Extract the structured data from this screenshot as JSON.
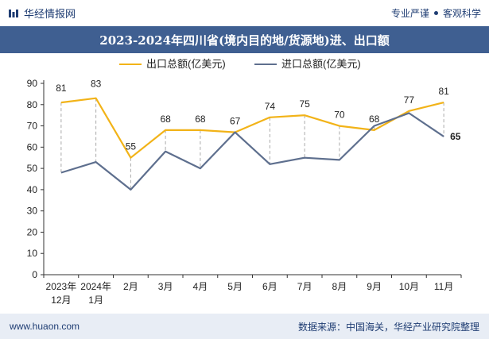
{
  "header": {
    "brand": "华经情报网",
    "tag1": "专业严谨",
    "tag2": "客观科学"
  },
  "title": "2023-2024年四川省(境内目的地/货源地)进、出口额",
  "footer": {
    "url": "www.huaon.com",
    "source": "数据来源：中国海关，华经产业研究院整理"
  },
  "colors": {
    "export": "#f2b318",
    "import": "#5e6f8e",
    "titlebar": "#3f5f91"
  },
  "chart_data": {
    "type": "line",
    "categories": [
      [
        "2023年",
        "12月"
      ],
      [
        "2024年",
        "1月"
      ],
      [
        "2月"
      ],
      [
        "3月"
      ],
      [
        "4月"
      ],
      [
        "5月"
      ],
      [
        "6月"
      ],
      [
        "7月"
      ],
      [
        "8月"
      ],
      [
        "9月"
      ],
      [
        "10月"
      ],
      [
        "11月"
      ]
    ],
    "series": [
      {
        "name": "出口总额(亿美元)",
        "values": [
          81,
          83,
          55,
          68,
          68,
          67,
          74,
          75,
          70,
          68,
          77,
          81
        ]
      },
      {
        "name": "进口总额(亿美元)",
        "values": [
          48,
          53,
          40,
          58,
          50,
          67,
          52,
          55,
          54,
          70,
          76,
          65
        ]
      }
    ],
    "labels": {
      "series0": [
        "81",
        "83",
        "55",
        "68",
        "68",
        "67",
        "74",
        "75",
        "70",
        "68",
        "77",
        "81"
      ],
      "series1_last": "65"
    },
    "ylim": [
      0,
      90
    ],
    "yticks": [
      0,
      10,
      20,
      30,
      40,
      50,
      60,
      70,
      80,
      90
    ],
    "legend": "top-center",
    "grid": false
  }
}
